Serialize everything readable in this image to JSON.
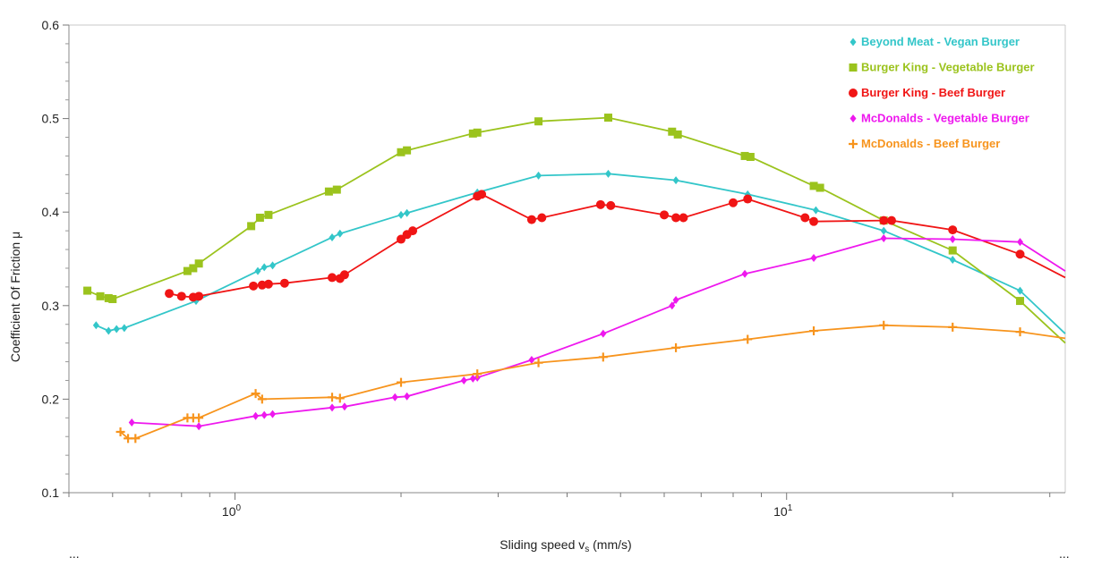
{
  "chart_data": {
    "type": "line",
    "xlabel": "Sliding speed v",
    "xlabel_sub": "s",
    "xlabel_unit": " (mm/s)",
    "ylabel": "Coefficient Of Friction  μ",
    "x_scale": "log",
    "xlim": [
      0.5,
      32
    ],
    "ylim": [
      0.1,
      0.6
    ],
    "y_ticks": [
      "0.1",
      "0.2",
      "0.3",
      "0.4",
      "0.5",
      "0.6"
    ],
    "x_ticks": [
      {
        "base": "10",
        "exp": "0",
        "value": 1
      },
      {
        "base": "10",
        "exp": "1",
        "value": 10
      }
    ],
    "grid": false,
    "legend_position": "top-right",
    "series": [
      {
        "name": "Beyond Meat - Vegan Burger",
        "color": "#33c6c9",
        "marker": "diamond",
        "points": [
          [
            0.56,
            0.279
          ],
          [
            0.59,
            0.273
          ],
          [
            0.61,
            0.275
          ],
          [
            0.63,
            0.276
          ],
          [
            0.85,
            0.305
          ],
          [
            1.1,
            0.337
          ],
          [
            1.13,
            0.341
          ],
          [
            1.17,
            0.343
          ],
          [
            1.5,
            0.373
          ],
          [
            1.55,
            0.377
          ],
          [
            2.0,
            0.397
          ],
          [
            2.05,
            0.399
          ],
          [
            2.75,
            0.421
          ],
          [
            3.55,
            0.439
          ],
          [
            4.75,
            0.441
          ],
          [
            6.3,
            0.434
          ],
          [
            8.5,
            0.419
          ],
          [
            11.3,
            0.402
          ],
          [
            15.0,
            0.38
          ],
          [
            20.0,
            0.349
          ],
          [
            26.5,
            0.316
          ],
          [
            32.0,
            0.27
          ]
        ]
      },
      {
        "name": "Burger King - Vegetable Burger",
        "color": "#9bc31d",
        "marker": "square",
        "points": [
          [
            0.54,
            0.316
          ],
          [
            0.57,
            0.31
          ],
          [
            0.59,
            0.308
          ],
          [
            0.6,
            0.307
          ],
          [
            0.82,
            0.337
          ],
          [
            0.84,
            0.34
          ],
          [
            0.86,
            0.345
          ],
          [
            1.07,
            0.385
          ],
          [
            1.11,
            0.394
          ],
          [
            1.15,
            0.397
          ],
          [
            1.48,
            0.422
          ],
          [
            1.53,
            0.424
          ],
          [
            2.0,
            0.464
          ],
          [
            2.05,
            0.466
          ],
          [
            2.7,
            0.484
          ],
          [
            2.75,
            0.485
          ],
          [
            3.55,
            0.497
          ],
          [
            4.75,
            0.501
          ],
          [
            6.2,
            0.486
          ],
          [
            6.35,
            0.483
          ],
          [
            8.4,
            0.46
          ],
          [
            8.6,
            0.459
          ],
          [
            11.2,
            0.428
          ],
          [
            11.5,
            0.426
          ],
          [
            15.0,
            0.391
          ],
          [
            20.0,
            0.359
          ],
          [
            26.5,
            0.305
          ],
          [
            32.0,
            0.26
          ]
        ]
      },
      {
        "name": "Burger King - Beef Burger",
        "color": "#f01515",
        "marker": "circle",
        "points": [
          [
            0.76,
            0.313
          ],
          [
            0.8,
            0.31
          ],
          [
            0.84,
            0.309
          ],
          [
            0.86,
            0.31
          ],
          [
            1.08,
            0.321
          ],
          [
            1.12,
            0.322
          ],
          [
            1.15,
            0.323
          ],
          [
            1.23,
            0.324
          ],
          [
            1.5,
            0.33
          ],
          [
            1.55,
            0.329
          ],
          [
            1.58,
            0.333
          ],
          [
            2.0,
            0.371
          ],
          [
            2.05,
            0.376
          ],
          [
            2.1,
            0.38
          ],
          [
            2.75,
            0.417
          ],
          [
            2.8,
            0.419
          ],
          [
            3.45,
            0.392
          ],
          [
            3.6,
            0.394
          ],
          [
            4.6,
            0.408
          ],
          [
            4.8,
            0.407
          ],
          [
            6.0,
            0.397
          ],
          [
            6.3,
            0.394
          ],
          [
            6.5,
            0.394
          ],
          [
            8.0,
            0.41
          ],
          [
            8.5,
            0.414
          ],
          [
            10.8,
            0.394
          ],
          [
            11.2,
            0.39
          ],
          [
            15.0,
            0.391
          ],
          [
            15.5,
            0.391
          ],
          [
            20.0,
            0.381
          ],
          [
            26.5,
            0.355
          ],
          [
            32.0,
            0.33
          ]
        ]
      },
      {
        "name": "McDonalds - Vegetable Burger",
        "color": "#ee18ee",
        "marker": "diamond",
        "points": [
          [
            0.65,
            0.175
          ],
          [
            0.86,
            0.171
          ],
          [
            1.09,
            0.182
          ],
          [
            1.13,
            0.183
          ],
          [
            1.17,
            0.184
          ],
          [
            1.5,
            0.191
          ],
          [
            1.58,
            0.192
          ],
          [
            1.95,
            0.202
          ],
          [
            2.05,
            0.203
          ],
          [
            2.6,
            0.22
          ],
          [
            2.7,
            0.222
          ],
          [
            2.75,
            0.223
          ],
          [
            3.45,
            0.242
          ],
          [
            4.65,
            0.27
          ],
          [
            6.2,
            0.3
          ],
          [
            6.3,
            0.306
          ],
          [
            8.4,
            0.334
          ],
          [
            11.2,
            0.351
          ],
          [
            15.0,
            0.372
          ],
          [
            20.0,
            0.371
          ],
          [
            26.5,
            0.368
          ],
          [
            32.0,
            0.337
          ]
        ]
      },
      {
        "name": "McDonalds - Beef Burger",
        "color": "#f7941d",
        "marker": "plus",
        "points": [
          [
            0.62,
            0.165
          ],
          [
            0.64,
            0.158
          ],
          [
            0.66,
            0.158
          ],
          [
            0.82,
            0.18
          ],
          [
            0.84,
            0.18
          ],
          [
            0.86,
            0.18
          ],
          [
            1.09,
            0.206
          ],
          [
            1.12,
            0.2
          ],
          [
            1.5,
            0.202
          ],
          [
            1.55,
            0.201
          ],
          [
            2.0,
            0.218
          ],
          [
            2.75,
            0.227
          ],
          [
            3.55,
            0.239
          ],
          [
            4.65,
            0.245
          ],
          [
            6.3,
            0.255
          ],
          [
            8.5,
            0.264
          ],
          [
            11.2,
            0.273
          ],
          [
            15.0,
            0.279
          ],
          [
            20.0,
            0.277
          ],
          [
            26.5,
            0.272
          ],
          [
            32.0,
            0.265
          ]
        ]
      }
    ],
    "corner_marks": [
      "...",
      "..."
    ]
  }
}
